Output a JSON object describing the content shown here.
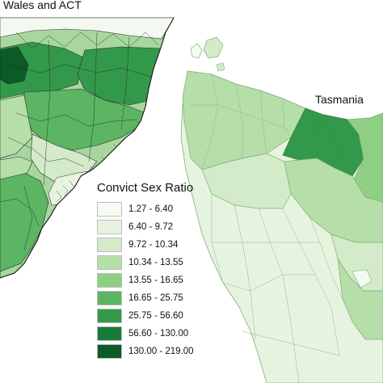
{
  "panels": {
    "nsw_title": "Wales and ACT",
    "tas_title": "Tasmania"
  },
  "legend": {
    "title": "Convict Sex Ratio",
    "classes": [
      {
        "label": "1.27 - 6.40",
        "color": "#f5fbf3"
      },
      {
        "label": "6.40 - 9.72",
        "color": "#e6f4df"
      },
      {
        "label": "9.72 - 10.34",
        "color": "#d3ebc9"
      },
      {
        "label": "10.34 - 13.55",
        "color": "#b6dea9"
      },
      {
        "label": "13.55 - 16.65",
        "color": "#8ecf84"
      },
      {
        "label": "16.65 - 25.75",
        "color": "#5cb563"
      },
      {
        "label": "25.75 - 56.60",
        "color": "#33994a"
      },
      {
        "label": "56.60 - 130.00",
        "color": "#177a37"
      },
      {
        "label": "130.00 - 219.00",
        "color": "#0b5a27"
      }
    ]
  },
  "colors": {
    "boundary_nsw": "#2b2b2b",
    "boundary_tas": "#7fae79"
  }
}
